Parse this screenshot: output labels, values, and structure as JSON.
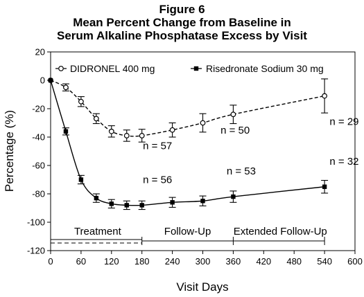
{
  "chart_data": {
    "type": "line",
    "figure_label": "Figure 6",
    "title_line1": "Mean Percent Change from Baseline in",
    "title_line2": "Serum Alkaline Phosphatase Excess by Visit",
    "xlabel": "Visit Days",
    "ylabel": "Percentage (%)",
    "xlim": [
      0,
      600
    ],
    "ylim": [
      -120,
      20
    ],
    "xticks": [
      0,
      60,
      120,
      180,
      240,
      300,
      360,
      420,
      480,
      540,
      600
    ],
    "yticks": [
      20,
      0,
      -20,
      -40,
      -60,
      -80,
      -100,
      -120
    ],
    "grid": false,
    "legend_position": "top",
    "series": [
      {
        "name": "DIDRONEL 400 mg",
        "style": "dashed",
        "marker": "open-circle",
        "color": "#000000",
        "x": [
          0,
          30,
          60,
          90,
          120,
          150,
          180,
          240,
          300,
          360,
          540
        ],
        "y": [
          0,
          -5,
          -15,
          -27,
          -36,
          -39,
          -39,
          -35,
          -30,
          -24,
          -11
        ],
        "err": [
          0,
          2.5,
          3.5,
          3.5,
          4,
          4,
          4.5,
          5,
          6.5,
          6.5,
          12
        ]
      },
      {
        "name": "Risedronate Sodium 30 mg",
        "style": "solid",
        "marker": "filled-square",
        "color": "#000000",
        "x": [
          0,
          30,
          60,
          90,
          120,
          150,
          180,
          240,
          300,
          360,
          540
        ],
        "y": [
          0,
          -36,
          -70,
          -83,
          -87,
          -88,
          -88,
          -86,
          -85,
          -82,
          -75
        ],
        "err": [
          0,
          2.5,
          3,
          3,
          3,
          3,
          3,
          3.5,
          3.5,
          4,
          4.5
        ]
      }
    ],
    "annotations": [
      {
        "text": "n = 57",
        "x": 182,
        "y": -46
      },
      {
        "text": "n = 50",
        "x": 335,
        "y": -35
      },
      {
        "text": "n = 29",
        "x": 550,
        "y": -29
      },
      {
        "text": "n = 56",
        "x": 182,
        "y": -70
      },
      {
        "text": "n = 53",
        "x": 347,
        "y": -64
      },
      {
        "text": "n = 32",
        "x": 550,
        "y": -57
      }
    ],
    "phases": [
      {
        "label": "Treatment",
        "start": 0,
        "end": 180
      },
      {
        "label": "Follow-Up",
        "start": 180,
        "end": 360
      },
      {
        "label": "Extended Follow-Up",
        "start": 360,
        "end": 540
      }
    ]
  }
}
